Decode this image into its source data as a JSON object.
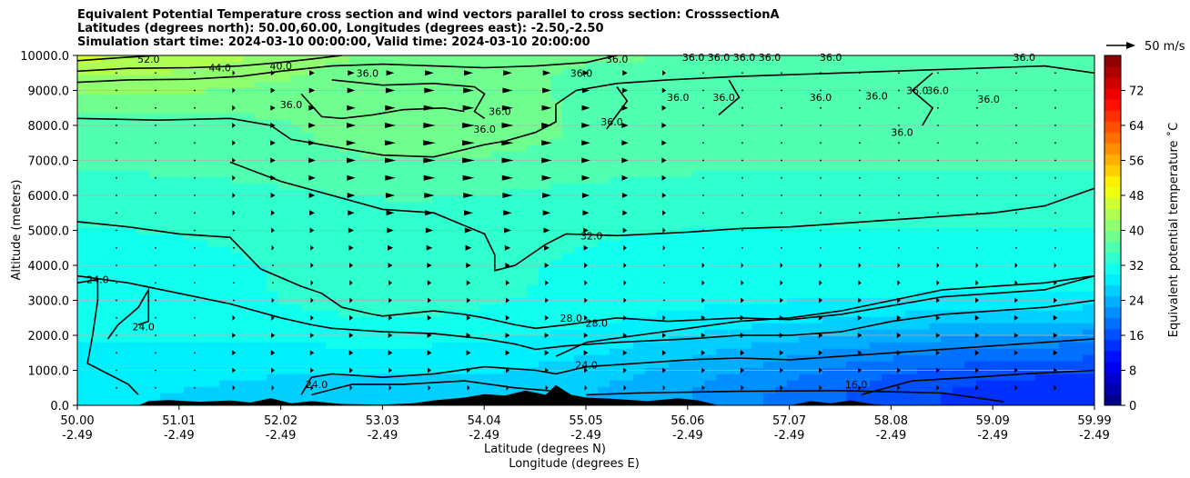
{
  "chart_data": {
    "type": "heatmap",
    "title_lines": [
      "Equivalent Potential Temperature cross section and wind vectors parallel to cross section: CrosssectionA",
      "Latitudes (degrees north): 50.00,60.00, Longitudes (degrees east): -2.50,-2.50",
      "Simulation start time: 2024-03-10 00:00:00, Valid time: 2024-03-10 20:00:00"
    ],
    "xlabel_line1": "Latitude (degrees N)",
    "xlabel_line2": "Longitude (degrees E)",
    "ylabel": "Altitude (meters)",
    "colorbar_label": "Equivalent potential temperature ˚C",
    "quiver_key": "50 m/s",
    "xlim": [
      50.0,
      59.99
    ],
    "ylim": [
      0,
      10000
    ],
    "x_ticks": [
      {
        "lat": "50.00",
        "lon": "-2.49"
      },
      {
        "lat": "51.01",
        "lon": "-2.49"
      },
      {
        "lat": "52.02",
        "lon": "-2.49"
      },
      {
        "lat": "53.03",
        "lon": "-2.49"
      },
      {
        "lat": "54.04",
        "lon": "-2.49"
      },
      {
        "lat": "55.05",
        "lon": "-2.49"
      },
      {
        "lat": "56.06",
        "lon": "-2.49"
      },
      {
        "lat": "57.07",
        "lon": "-2.49"
      },
      {
        "lat": "58.08",
        "lon": "-2.49"
      },
      {
        "lat": "59.09",
        "lon": "-2.49"
      },
      {
        "lat": "59.99",
        "lon": "-2.49"
      }
    ],
    "y_ticks": [
      "0.0",
      "1000.0",
      "2000.0",
      "3000.0",
      "4000.0",
      "5000.0",
      "6000.0",
      "7000.0",
      "8000.0",
      "9000.0",
      "10000.0"
    ],
    "y_tick_values": [
      0,
      1000,
      2000,
      3000,
      4000,
      5000,
      6000,
      7000,
      8000,
      9000,
      10000
    ],
    "colorbar_range": [
      0,
      80
    ],
    "colorbar_ticks": [
      "0",
      "8",
      "16",
      "24",
      "32",
      "40",
      "48",
      "56",
      "64",
      "72"
    ],
    "colorbar_tick_values": [
      0,
      8,
      16,
      24,
      32,
      40,
      48,
      56,
      64,
      72
    ],
    "grid": "horizontal",
    "colormap": "jet",
    "contour_levels": [
      {
        "label": "16.0",
        "value": 16
      },
      {
        "label": "24.0",
        "value": 24
      },
      {
        "label": "28.0",
        "value": 28
      },
      {
        "label": "32.0",
        "value": 32
      },
      {
        "label": "36.0",
        "value": 36
      },
      {
        "label": "40.0",
        "value": 40
      },
      {
        "label": "44.0",
        "value": 44
      },
      {
        "label": "52.0",
        "value": 52
      }
    ],
    "contours": [
      {
        "level": "44.0",
        "points": [
          [
            50.0,
            9550
          ],
          [
            50.5,
            9630
          ],
          [
            51.1,
            9650
          ],
          [
            51.6,
            9700
          ],
          [
            52.0,
            9800
          ],
          [
            52.3,
            9900
          ],
          [
            52.6,
            10000
          ]
        ]
      },
      {
        "level": "40.0",
        "points": [
          [
            50.0,
            9230
          ],
          [
            50.5,
            9300
          ],
          [
            51.1,
            9320
          ],
          [
            51.6,
            9400
          ],
          [
            52.0,
            9550
          ],
          [
            52.5,
            9700
          ],
          [
            53.0,
            9750
          ],
          [
            53.5,
            9700
          ],
          [
            54.0,
            9650
          ],
          [
            54.5,
            9700
          ],
          [
            55.0,
            9800
          ],
          [
            55.3,
            10000
          ]
        ]
      },
      {
        "level": "52.0",
        "points": [
          [
            50.0,
            9850
          ],
          [
            50.5,
            9950
          ],
          [
            50.8,
            10000
          ]
        ]
      },
      {
        "level": "36.0",
        "points": [
          [
            50.0,
            8200
          ],
          [
            50.8,
            8150
          ],
          [
            51.5,
            8200
          ],
          [
            51.9,
            8000
          ],
          [
            52.1,
            7600
          ],
          [
            52.5,
            7400
          ],
          [
            53.0,
            7150
          ],
          [
            53.5,
            7100
          ],
          [
            54.0,
            7450
          ],
          [
            54.2,
            7550
          ],
          [
            54.5,
            7800
          ],
          [
            54.7,
            8100
          ],
          [
            54.7,
            8600
          ],
          [
            54.9,
            9000
          ],
          [
            55.3,
            9200
          ],
          [
            55.8,
            9300
          ],
          [
            56.5,
            9400
          ],
          [
            57.5,
            9500
          ],
          [
            58.5,
            9600
          ],
          [
            59.5,
            9700
          ],
          [
            59.99,
            9500
          ]
        ]
      },
      {
        "level": "36.0",
        "points": [
          [
            52.2,
            8900
          ],
          [
            52.4,
            8250
          ],
          [
            52.6,
            8200
          ],
          [
            52.9,
            8300
          ],
          [
            53.2,
            8450
          ],
          [
            53.6,
            8500
          ],
          [
            53.8,
            8400
          ]
        ]
      },
      {
        "level": "36.0",
        "points": [
          [
            52.5,
            9300
          ],
          [
            53.0,
            9150
          ],
          [
            53.5,
            9200
          ],
          [
            53.9,
            9100
          ],
          [
            54.0,
            8900
          ],
          [
            53.9,
            8400
          ],
          [
            54.0,
            8200
          ]
        ]
      },
      {
        "level": "36.0",
        "points": [
          [
            55.2,
            7900
          ],
          [
            55.4,
            8700
          ],
          [
            55.3,
            9100
          ]
        ]
      },
      {
        "level": "36.0",
        "points": [
          [
            56.3,
            8300
          ],
          [
            56.5,
            8800
          ],
          [
            56.4,
            9300
          ]
        ]
      },
      {
        "level": "36.0",
        "points": [
          [
            58.3,
            8000
          ],
          [
            58.4,
            8500
          ],
          [
            58.2,
            9000
          ],
          [
            58.4,
            9500
          ]
        ]
      },
      {
        "level": "32.0",
        "points": [
          [
            50.0,
            5250
          ],
          [
            50.5,
            5100
          ],
          [
            51.0,
            4900
          ],
          [
            51.5,
            4800
          ],
          [
            51.6,
            4500
          ],
          [
            51.8,
            3900
          ],
          [
            52.2,
            3400
          ],
          [
            52.4,
            3200
          ],
          [
            52.6,
            2800
          ],
          [
            52.9,
            2600
          ],
          [
            53.0,
            2550
          ],
          [
            53.5,
            2700
          ],
          [
            53.8,
            2600
          ],
          [
            54.0,
            2500
          ],
          [
            54.3,
            2300
          ],
          [
            54.5,
            2200
          ],
          [
            54.8,
            2300
          ],
          [
            55.3,
            2500
          ],
          [
            55.8,
            2400
          ],
          [
            56.5,
            2500
          ],
          [
            57.0,
            2450
          ],
          [
            57.5,
            2600
          ],
          [
            58.0,
            2850
          ],
          [
            58.5,
            3100
          ],
          [
            59.0,
            3200
          ],
          [
            59.5,
            3300
          ],
          [
            59.99,
            3700
          ]
        ]
      },
      {
        "level": "32.0",
        "points": [
          [
            51.5,
            6950
          ],
          [
            52.0,
            6400
          ],
          [
            52.5,
            6000
          ],
          [
            53.0,
            5600
          ],
          [
            53.5,
            5500
          ],
          [
            54.0,
            4900
          ],
          [
            54.1,
            4300
          ],
          [
            54.1,
            3850
          ],
          [
            54.3,
            4000
          ],
          [
            54.6,
            4600
          ],
          [
            54.8,
            4900
          ],
          [
            55.3,
            4850
          ],
          [
            56.0,
            4950
          ],
          [
            56.5,
            5050
          ],
          [
            57.0,
            5100
          ],
          [
            57.5,
            5200
          ],
          [
            58.0,
            5300
          ],
          [
            58.5,
            5400
          ],
          [
            59.0,
            5500
          ],
          [
            59.5,
            5700
          ],
          [
            59.99,
            6200
          ]
        ]
      },
      {
        "level": "28.0",
        "points": [
          [
            50.0,
            3700
          ],
          [
            50.5,
            3500
          ],
          [
            51.0,
            3200
          ],
          [
            51.5,
            2900
          ],
          [
            52.0,
            2500
          ],
          [
            52.3,
            2300
          ],
          [
            52.5,
            2200
          ],
          [
            53.0,
            2100
          ],
          [
            53.5,
            2050
          ],
          [
            54.0,
            1900
          ],
          [
            54.3,
            1750
          ],
          [
            54.5,
            1600
          ],
          [
            54.8,
            1700
          ],
          [
            55.3,
            1800
          ],
          [
            56.0,
            1900
          ],
          [
            56.5,
            2000
          ],
          [
            57.0,
            2000
          ],
          [
            57.5,
            2100
          ],
          [
            58.0,
            2400
          ],
          [
            58.5,
            2600
          ],
          [
            59.0,
            2700
          ],
          [
            59.5,
            2800
          ],
          [
            59.99,
            3000
          ]
        ]
      },
      {
        "level": "28.0",
        "points": [
          [
            54.7,
            1400
          ],
          [
            55.0,
            1800
          ],
          [
            55.5,
            2000
          ],
          [
            56.0,
            2200
          ],
          [
            56.5,
            2400
          ],
          [
            57.0,
            2500
          ],
          [
            57.5,
            2700
          ],
          [
            58.0,
            3000
          ],
          [
            58.5,
            3300
          ],
          [
            59.0,
            3400
          ],
          [
            59.5,
            3500
          ],
          [
            59.99,
            3700
          ]
        ]
      },
      {
        "level": "24.0",
        "points": [
          [
            50.0,
            3500
          ],
          [
            50.2,
            3600
          ],
          [
            50.2,
            3000
          ],
          [
            50.15,
            2000
          ],
          [
            50.1,
            1200
          ],
          [
            50.5,
            600
          ],
          [
            50.6,
            300
          ]
        ]
      },
      {
        "level": "24.0",
        "points": [
          [
            50.3,
            1900
          ],
          [
            50.4,
            2300
          ],
          [
            50.6,
            2800
          ],
          [
            50.7,
            3300
          ],
          [
            50.7,
            2400
          ],
          [
            50.6,
            2300
          ]
        ]
      },
      {
        "level": "24.0",
        "points": [
          [
            52.2,
            300
          ],
          [
            52.3,
            800
          ],
          [
            52.5,
            900
          ],
          [
            53.0,
            800
          ],
          [
            53.5,
            900
          ],
          [
            54.0,
            1100
          ],
          [
            54.5,
            1000
          ],
          [
            54.7,
            900
          ],
          [
            55.0,
            1100
          ],
          [
            55.5,
            1200
          ],
          [
            56.0,
            1300
          ],
          [
            56.5,
            1350
          ],
          [
            57.0,
            1300
          ],
          [
            57.5,
            1400
          ],
          [
            58.0,
            1500
          ],
          [
            58.5,
            1600
          ],
          [
            59.0,
            1700
          ],
          [
            59.5,
            1800
          ],
          [
            59.99,
            1900
          ]
        ]
      },
      {
        "level": "24.0",
        "points": [
          [
            52.3,
            300
          ],
          [
            52.7,
            600
          ],
          [
            53.2,
            600
          ],
          [
            53.8,
            700
          ],
          [
            54.3,
            500
          ],
          [
            54.7,
            400
          ]
        ]
      },
      {
        "level": "16.0",
        "points": [
          [
            57.7,
            300
          ],
          [
            58.2,
            700
          ],
          [
            58.8,
            800
          ],
          [
            59.3,
            900
          ],
          [
            59.99,
            1000
          ]
        ]
      },
      {
        "level": "16.0",
        "points": [
          [
            55.0,
            300
          ],
          [
            55.5,
            350
          ],
          [
            56.5,
            400
          ],
          [
            57.5,
            420
          ],
          [
            58.5,
            350
          ],
          [
            59.1,
            100
          ]
        ]
      }
    ],
    "contour_labels": [
      {
        "text": "52.0",
        "x": 50.7,
        "y": 9900
      },
      {
        "text": "44.0",
        "x": 51.4,
        "y": 9650
      },
      {
        "text": "40.0",
        "x": 52.0,
        "y": 9700
      },
      {
        "text": "36.0",
        "x": 52.85,
        "y": 9500
      },
      {
        "text": "36.0",
        "x": 54.95,
        "y": 9500
      },
      {
        "text": "36.0",
        "x": 55.3,
        "y": 9900
      },
      {
        "text": "36.0",
        "x": 56.05,
        "y": 9950
      },
      {
        "text": "36.0",
        "x": 56.3,
        "y": 9950
      },
      {
        "text": "36.0",
        "x": 56.55,
        "y": 9950
      },
      {
        "text": "36.0",
        "x": 56.8,
        "y": 9950
      },
      {
        "text": "36.0",
        "x": 57.4,
        "y": 9950
      },
      {
        "text": "36.0",
        "x": 59.3,
        "y": 9950
      },
      {
        "text": "36.0",
        "x": 52.1,
        "y": 8600
      },
      {
        "text": "36.0",
        "x": 54.0,
        "y": 7900
      },
      {
        "text": "36.0",
        "x": 54.15,
        "y": 8400
      },
      {
        "text": "36.0",
        "x": 55.25,
        "y": 8100
      },
      {
        "text": "36.0",
        "x": 55.9,
        "y": 8800
      },
      {
        "text": "36.0",
        "x": 56.35,
        "y": 8800
      },
      {
        "text": "36.0",
        "x": 57.3,
        "y": 8800
      },
      {
        "text": "36.0",
        "x": 57.85,
        "y": 8850
      },
      {
        "text": "36.0",
        "x": 58.1,
        "y": 7800
      },
      {
        "text": "36.0",
        "x": 58.25,
        "y": 9000
      },
      {
        "text": "36.0",
        "x": 58.45,
        "y": 9000
      },
      {
        "text": "36.0",
        "x": 58.95,
        "y": 8750
      },
      {
        "text": "32.0",
        "x": 55.05,
        "y": 4850
      },
      {
        "text": "28.0",
        "x": 54.85,
        "y": 2500
      },
      {
        "text": "28.0",
        "x": 55.1,
        "y": 2350
      },
      {
        "text": "24.0",
        "x": 50.2,
        "y": 3600
      },
      {
        "text": "24.0",
        "x": 50.65,
        "y": 2250
      },
      {
        "text": "24.0",
        "x": 52.35,
        "y": 600
      },
      {
        "text": "24.0",
        "x": 55.0,
        "y": 1150
      },
      {
        "text": "16.0",
        "x": 57.65,
        "y": 600
      }
    ],
    "colors": {
      "contour_line": "#000000",
      "terrain": "#000000",
      "gridline": "#b0b0b0",
      "vector": "#000000"
    }
  }
}
